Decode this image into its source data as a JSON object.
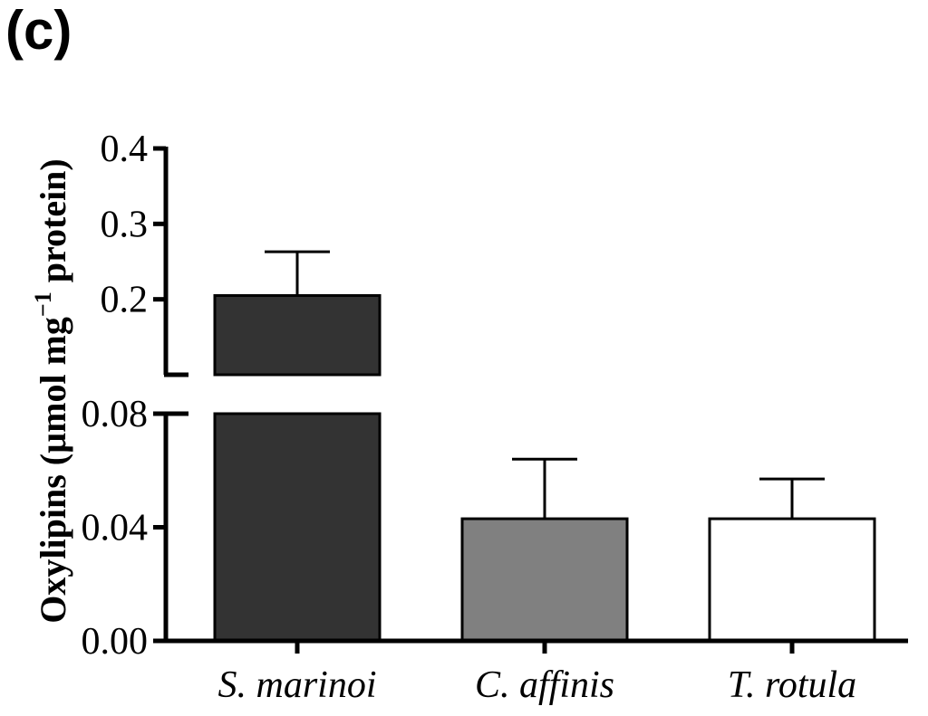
{
  "panel_label": "(c)",
  "chart_data": {
    "type": "bar",
    "ylabel_main": "Oxylipins (µmol mg",
    "ylabel_sup": "−1",
    "ylabel_tail": " protein)",
    "xlabel": "",
    "categories": [
      "S. marinoi",
      "C. affinis",
      "T. rotula"
    ],
    "values": [
      0.205,
      0.043,
      0.043
    ],
    "errors": [
      0.058,
      0.021,
      0.014
    ],
    "colors": [
      "#333333",
      "#808080",
      "#ffffff"
    ],
    "y_axis_broken": true,
    "lower_segment": {
      "ylim": [
        0.0,
        0.08
      ],
      "ticks": [
        "0.00",
        "0.04",
        "0.08"
      ],
      "tick_values": [
        0.0,
        0.04,
        0.08
      ]
    },
    "upper_segment": {
      "ylim": [
        0.1,
        0.4
      ],
      "ticks": [
        "0.2",
        "0.3",
        "0.4"
      ],
      "tick_values": [
        0.2,
        0.3,
        0.4
      ]
    },
    "legend": "none",
    "grid": false
  }
}
